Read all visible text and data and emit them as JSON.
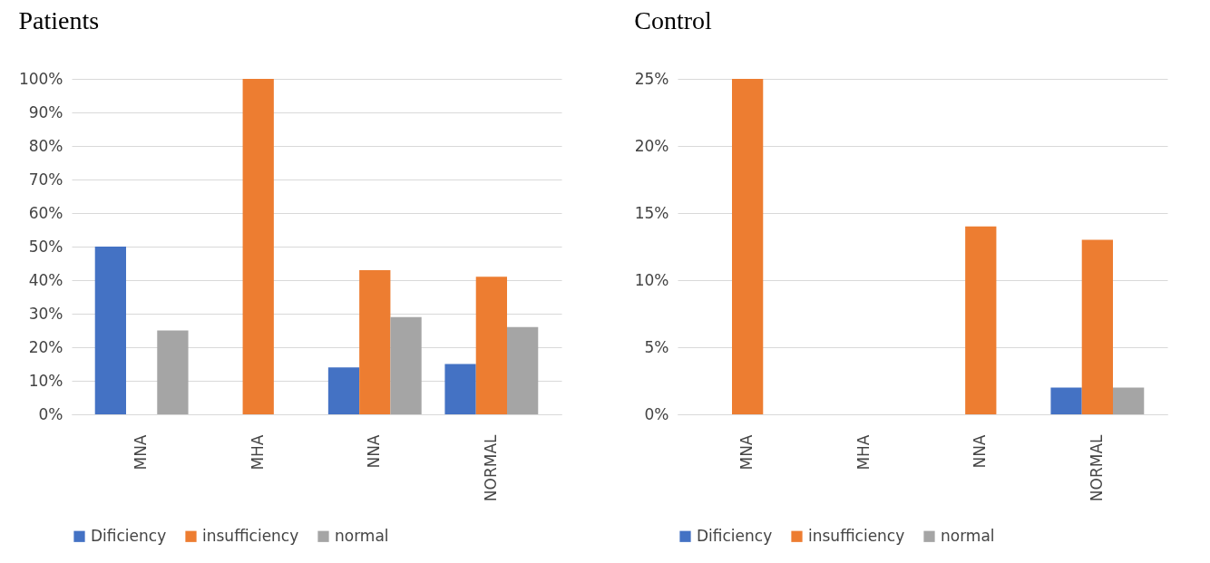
{
  "chart_data": [
    {
      "type": "bar",
      "title": "Patients",
      "categories": [
        "MNA",
        "MHA",
        "NNA",
        "NORMAL"
      ],
      "series": [
        {
          "name": "Dificiency",
          "color": "#4472c4",
          "values": [
            50,
            0,
            14,
            15
          ]
        },
        {
          "name": "insufficiency",
          "color": "#ed7d31",
          "values": [
            0,
            100,
            43,
            41
          ]
        },
        {
          "name": "normal",
          "color": "#a5a5a5",
          "values": [
            25,
            0,
            29,
            26
          ]
        }
      ],
      "ylim": [
        0,
        100
      ],
      "yticks": [
        {
          "value": 0,
          "label": "0%"
        },
        {
          "value": 10,
          "label": "10%"
        },
        {
          "value": 20,
          "label": "20%"
        },
        {
          "value": 30,
          "label": "30%"
        },
        {
          "value": 40,
          "label": "40%"
        },
        {
          "value": 50,
          "label": "50%"
        },
        {
          "value": 60,
          "label": "60%"
        },
        {
          "value": 70,
          "label": "70%"
        },
        {
          "value": 80,
          "label": "80%"
        },
        {
          "value": 90,
          "label": "90%"
        },
        {
          "value": 100,
          "label": "100%"
        }
      ],
      "grid": "y",
      "legend": "bottom"
    },
    {
      "type": "bar",
      "title": "Control",
      "categories": [
        "MNA",
        "MHA",
        "NNA",
        "NORMAL"
      ],
      "series": [
        {
          "name": "Dificiency",
          "color": "#4472c4",
          "values": [
            0,
            0,
            0,
            2
          ]
        },
        {
          "name": "insufficiency",
          "color": "#ed7d31",
          "values": [
            25,
            0,
            14,
            13
          ]
        },
        {
          "name": "normal",
          "color": "#a5a5a5",
          "values": [
            0,
            0,
            0,
            2
          ]
        }
      ],
      "ylim": [
        0,
        25
      ],
      "yticks": [
        {
          "value": 0,
          "label": "0%"
        },
        {
          "value": 5,
          "label": "5%"
        },
        {
          "value": 10,
          "label": "10%"
        },
        {
          "value": 15,
          "label": "15%"
        },
        {
          "value": 20,
          "label": "20%"
        },
        {
          "value": 25,
          "label": "25%"
        }
      ],
      "grid": "y",
      "legend": "bottom"
    }
  ]
}
